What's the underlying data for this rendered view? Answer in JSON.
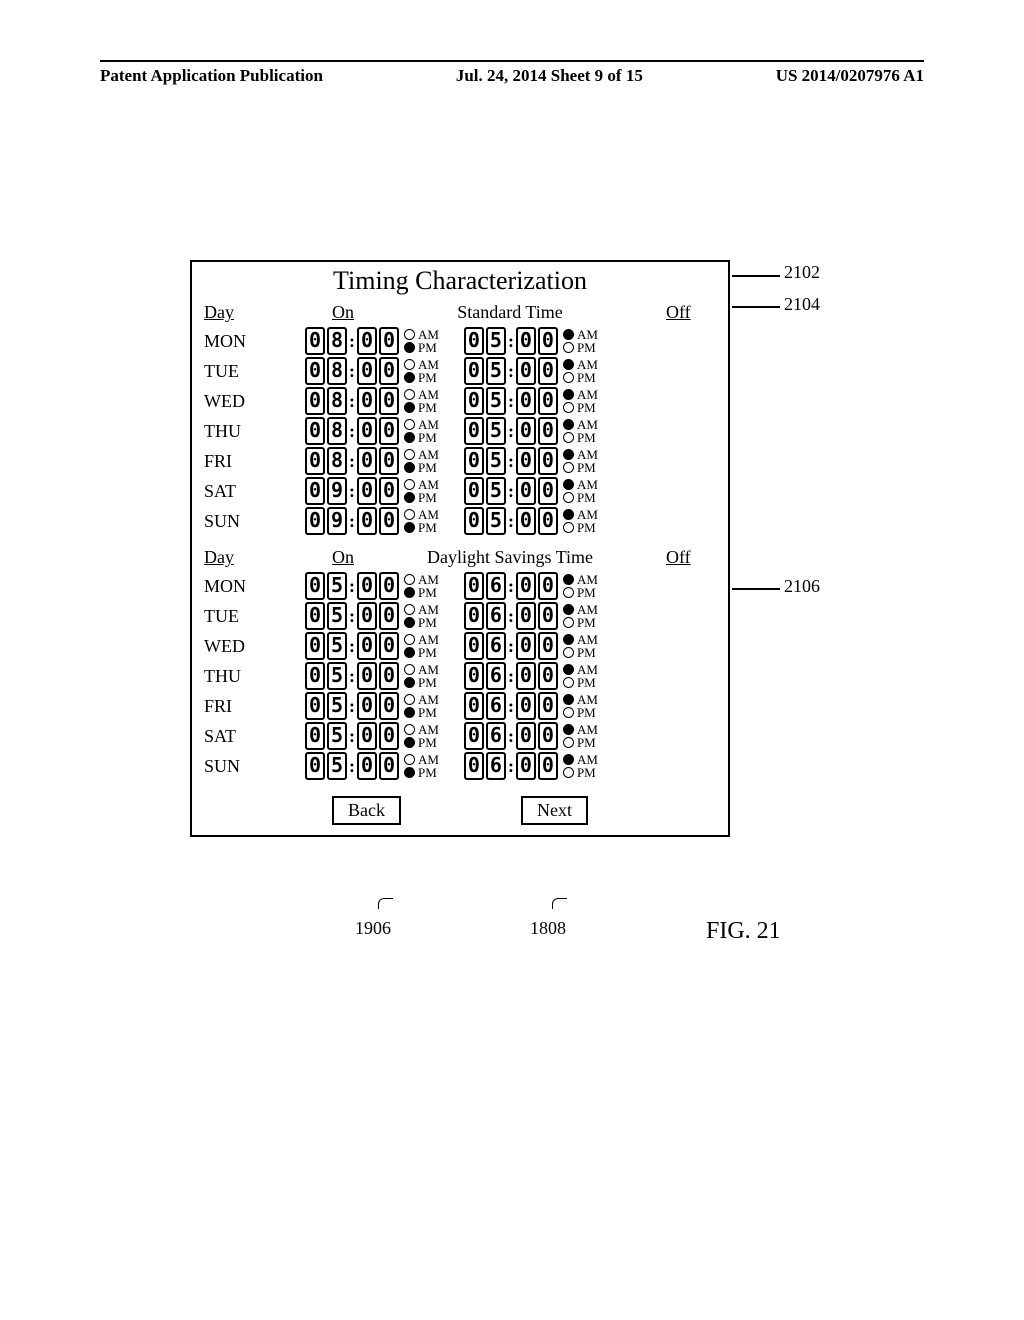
{
  "header": {
    "left": "Patent Application Publication",
    "center": "Jul. 24, 2014  Sheet 9 of 15",
    "right": "US 2014/0207976 A1"
  },
  "panel": {
    "title": "Timing Characterization",
    "sections": [
      {
        "header_day": "Day",
        "header_on": "On",
        "header_mid": "Standard Time",
        "header_off": "Off",
        "rows": [
          {
            "day": "MON",
            "on": {
              "h1": "0",
              "h2": "8",
              "m1": "0",
              "m2": "0",
              "am": false,
              "pm": true
            },
            "off": {
              "h1": "0",
              "h2": "5",
              "m1": "0",
              "m2": "0",
              "am": true,
              "pm": false
            }
          },
          {
            "day": "TUE",
            "on": {
              "h1": "0",
              "h2": "8",
              "m1": "0",
              "m2": "0",
              "am": false,
              "pm": true
            },
            "off": {
              "h1": "0",
              "h2": "5",
              "m1": "0",
              "m2": "0",
              "am": true,
              "pm": false
            }
          },
          {
            "day": "WED",
            "on": {
              "h1": "0",
              "h2": "8",
              "m1": "0",
              "m2": "0",
              "am": false,
              "pm": true
            },
            "off": {
              "h1": "0",
              "h2": "5",
              "m1": "0",
              "m2": "0",
              "am": true,
              "pm": false
            }
          },
          {
            "day": "THU",
            "on": {
              "h1": "0",
              "h2": "8",
              "m1": "0",
              "m2": "0",
              "am": false,
              "pm": true
            },
            "off": {
              "h1": "0",
              "h2": "5",
              "m1": "0",
              "m2": "0",
              "am": true,
              "pm": false
            }
          },
          {
            "day": "FRI",
            "on": {
              "h1": "0",
              "h2": "8",
              "m1": "0",
              "m2": "0",
              "am": false,
              "pm": true
            },
            "off": {
              "h1": "0",
              "h2": "5",
              "m1": "0",
              "m2": "0",
              "am": true,
              "pm": false
            }
          },
          {
            "day": "SAT",
            "on": {
              "h1": "0",
              "h2": "9",
              "m1": "0",
              "m2": "0",
              "am": false,
              "pm": true
            },
            "off": {
              "h1": "0",
              "h2": "5",
              "m1": "0",
              "m2": "0",
              "am": true,
              "pm": false
            }
          },
          {
            "day": "SUN",
            "on": {
              "h1": "0",
              "h2": "9",
              "m1": "0",
              "m2": "0",
              "am": false,
              "pm": true
            },
            "off": {
              "h1": "0",
              "h2": "5",
              "m1": "0",
              "m2": "0",
              "am": true,
              "pm": false
            }
          }
        ]
      },
      {
        "header_day": "Day",
        "header_on": "On",
        "header_mid": "Daylight Savings Time",
        "header_off": "Off",
        "rows": [
          {
            "day": "MON",
            "on": {
              "h1": "0",
              "h2": "5",
              "m1": "0",
              "m2": "0",
              "am": false,
              "pm": true
            },
            "off": {
              "h1": "0",
              "h2": "6",
              "m1": "0",
              "m2": "0",
              "am": true,
              "pm": false
            }
          },
          {
            "day": "TUE",
            "on": {
              "h1": "0",
              "h2": "5",
              "m1": "0",
              "m2": "0",
              "am": false,
              "pm": true
            },
            "off": {
              "h1": "0",
              "h2": "6",
              "m1": "0",
              "m2": "0",
              "am": true,
              "pm": false
            }
          },
          {
            "day": "WED",
            "on": {
              "h1": "0",
              "h2": "5",
              "m1": "0",
              "m2": "0",
              "am": false,
              "pm": true
            },
            "off": {
              "h1": "0",
              "h2": "6",
              "m1": "0",
              "m2": "0",
              "am": true,
              "pm": false
            }
          },
          {
            "day": "THU",
            "on": {
              "h1": "0",
              "h2": "5",
              "m1": "0",
              "m2": "0",
              "am": false,
              "pm": true
            },
            "off": {
              "h1": "0",
              "h2": "6",
              "m1": "0",
              "m2": "0",
              "am": true,
              "pm": false
            }
          },
          {
            "day": "FRI",
            "on": {
              "h1": "0",
              "h2": "5",
              "m1": "0",
              "m2": "0",
              "am": false,
              "pm": true
            },
            "off": {
              "h1": "0",
              "h2": "6",
              "m1": "0",
              "m2": "0",
              "am": true,
              "pm": false
            }
          },
          {
            "day": "SAT",
            "on": {
              "h1": "0",
              "h2": "5",
              "m1": "0",
              "m2": "0",
              "am": false,
              "pm": true
            },
            "off": {
              "h1": "0",
              "h2": "6",
              "m1": "0",
              "m2": "0",
              "am": true,
              "pm": false
            }
          },
          {
            "day": "SUN",
            "on": {
              "h1": "0",
              "h2": "5",
              "m1": "0",
              "m2": "0",
              "am": false,
              "pm": true
            },
            "off": {
              "h1": "0",
              "h2": "6",
              "m1": "0",
              "m2": "0",
              "am": true,
              "pm": false
            }
          }
        ]
      }
    ],
    "buttons": {
      "back": "Back",
      "next": "Next"
    }
  },
  "refs": {
    "r2102": "2102",
    "r2104": "2104",
    "r2106": "2106",
    "r1906": "1906",
    "r1808": "1808",
    "fig": "FIG. 21"
  }
}
